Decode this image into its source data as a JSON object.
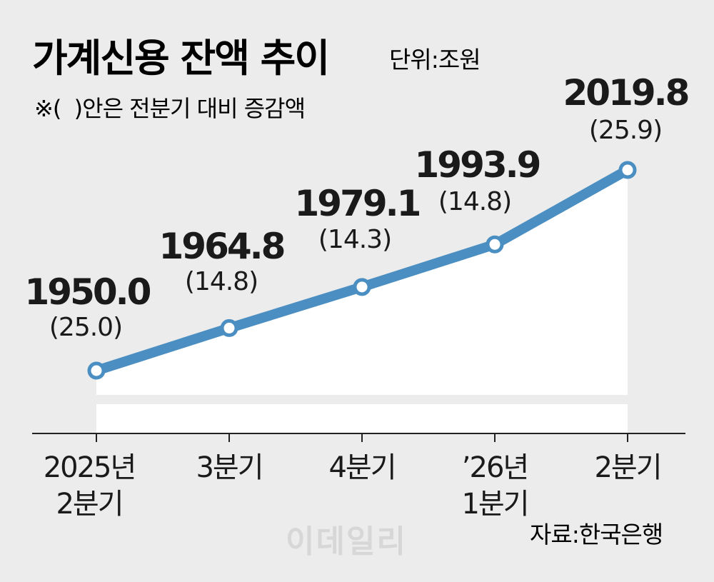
{
  "header": {
    "title": "가계신용 잔액 추이",
    "unit": "단위:조원",
    "note": "※(  )안은 전분기 대비 증감액"
  },
  "source": "자료:한국은행",
  "watermark": "이데일리",
  "colors": {
    "line": "#4a8ec2",
    "area": "#ffffff",
    "background": "#ececec",
    "text": "#1a1a1a"
  },
  "chart_data": {
    "type": "line",
    "categories": [
      [
        "2025년",
        "2분기"
      ],
      [
        "3분기"
      ],
      [
        "4분기"
      ],
      [
        "’26년",
        "1분기"
      ],
      [
        "2분기"
      ]
    ],
    "values": [
      1950.0,
      1964.8,
      1979.1,
      1993.9,
      2019.8
    ],
    "value_labels": [
      "1950.0",
      "1964.8",
      "1979.1",
      "1993.9",
      "2019.8"
    ],
    "change_labels": [
      "(25.0)",
      "(14.8)",
      "(14.3)",
      "(14.8)",
      "(25.9)"
    ],
    "title": "가계신용 잔액 추이",
    "ylabel": "",
    "grid": false,
    "legend": "none"
  }
}
